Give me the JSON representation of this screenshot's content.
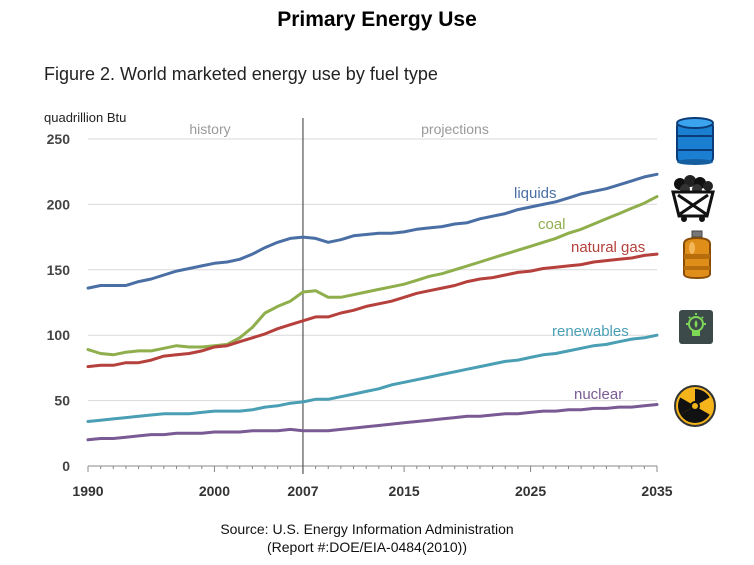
{
  "page_title": "Primary Energy Use",
  "figure_title": "Figure 2. World marketed energy use by fuel type",
  "source": {
    "line1": "Source: U.S. Energy Information Administration",
    "line2": "(Report #:DOE/EIA-0484(2010))"
  },
  "icons": [
    "oil-barrel-icon",
    "coal-cart-icon",
    "gas-canister-icon",
    "renewable-bulb-icon",
    "radiation-icon"
  ],
  "chart_data": {
    "type": "line",
    "ylabel": "quadrillion Btu",
    "ylim": [
      0,
      250
    ],
    "yticks": [
      0,
      50,
      100,
      150,
      200,
      250
    ],
    "xlim": [
      1990,
      2035
    ],
    "xticks": [
      1990,
      2000,
      2007,
      2015,
      2025,
      2035
    ],
    "divider_year": 2007,
    "region_labels": [
      "history",
      "projections"
    ],
    "grid": "horizontal",
    "x": [
      1990,
      1991,
      1992,
      1993,
      1994,
      1995,
      1996,
      1997,
      1998,
      1999,
      2000,
      2001,
      2002,
      2003,
      2004,
      2005,
      2006,
      2007,
      2008,
      2009,
      2010,
      2011,
      2012,
      2013,
      2014,
      2015,
      2016,
      2017,
      2018,
      2019,
      2020,
      2021,
      2022,
      2023,
      2024,
      2025,
      2026,
      2027,
      2028,
      2029,
      2030,
      2031,
      2032,
      2033,
      2034,
      2035
    ],
    "series": [
      {
        "name": "liquids",
        "color": "#4a6fa5",
        "values": [
          136,
          138,
          138,
          138,
          141,
          143,
          146,
          149,
          151,
          153,
          155,
          156,
          158,
          162,
          167,
          171,
          174,
          175,
          174,
          171,
          173,
          176,
          177,
          178,
          178,
          179,
          181,
          182,
          183,
          185,
          186,
          189,
          191,
          193,
          196,
          198,
          200,
          202,
          205,
          208,
          210,
          212,
          215,
          218,
          221,
          223
        ]
      },
      {
        "name": "coal",
        "color": "#8fae4c",
        "values": [
          89,
          86,
          85,
          87,
          88,
          88,
          90,
          92,
          91,
          91,
          92,
          93,
          98,
          106,
          117,
          122,
          126,
          133,
          134,
          129,
          129,
          131,
          133,
          135,
          137,
          139,
          142,
          145,
          147,
          150,
          153,
          156,
          159,
          162,
          165,
          168,
          171,
          174,
          178,
          181,
          185,
          189,
          193,
          197,
          201,
          206
        ]
      },
      {
        "name": "natural gas",
        "color": "#b5403c",
        "values": [
          76,
          77,
          77,
          79,
          79,
          81,
          84,
          85,
          86,
          88,
          91,
          92,
          95,
          98,
          101,
          105,
          108,
          111,
          114,
          114,
          117,
          119,
          122,
          124,
          126,
          129,
          132,
          134,
          136,
          138,
          141,
          143,
          144,
          146,
          148,
          149,
          151,
          152,
          153,
          154,
          156,
          157,
          158,
          159,
          161,
          162
        ]
      },
      {
        "name": "renewables",
        "color": "#4a9fb5",
        "values": [
          34,
          35,
          36,
          37,
          38,
          39,
          40,
          40,
          40,
          41,
          42,
          42,
          42,
          43,
          45,
          46,
          48,
          49,
          51,
          51,
          53,
          55,
          57,
          59,
          62,
          64,
          66,
          68,
          70,
          72,
          74,
          76,
          78,
          80,
          81,
          83,
          85,
          86,
          88,
          90,
          92,
          93,
          95,
          97,
          98,
          100
        ]
      },
      {
        "name": "nuclear",
        "color": "#7a5a94",
        "values": [
          20,
          21,
          21,
          22,
          23,
          24,
          24,
          25,
          25,
          25,
          26,
          26,
          26,
          27,
          27,
          27,
          28,
          27,
          27,
          27,
          28,
          29,
          30,
          31,
          32,
          33,
          34,
          35,
          36,
          37,
          38,
          38,
          39,
          40,
          40,
          41,
          42,
          42,
          43,
          43,
          44,
          44,
          45,
          45,
          46,
          47
        ]
      }
    ]
  }
}
